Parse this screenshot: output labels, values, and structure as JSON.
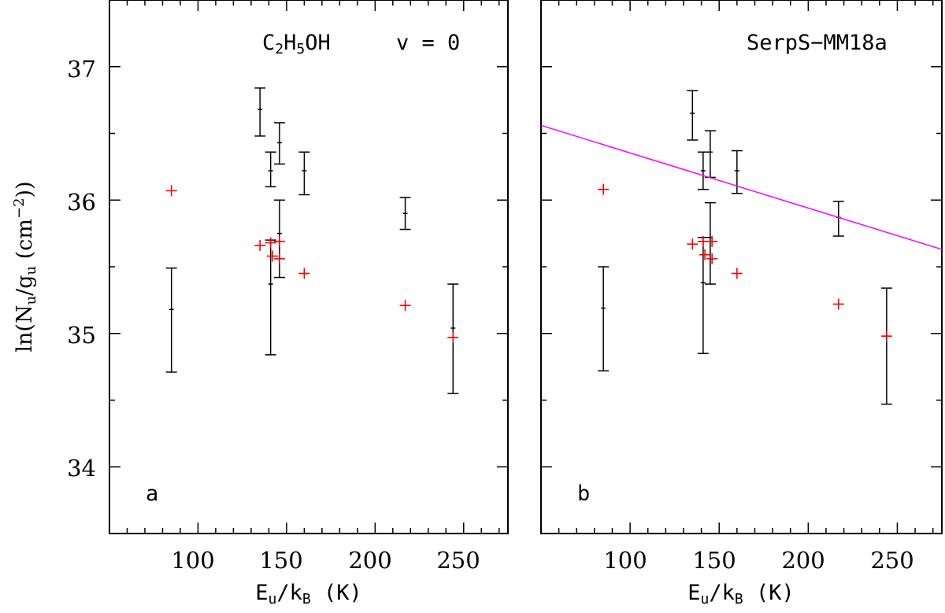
{
  "colors": {
    "frame": "#000000",
    "detected": "#000000",
    "model": "#ff0000",
    "fit": "#ff00ff"
  },
  "ylabel": {
    "pre": "ln(N",
    "sub1": "u",
    "mid": "/g",
    "sub2": "u",
    "unit": " (cm",
    "sup": "−2",
    "post": "))"
  },
  "xlabel": {
    "pre": "E",
    "sub1": "u",
    "mid": "/k",
    "sub2": "B",
    "post": " (K)"
  },
  "chart_data": [
    {
      "type": "scatter",
      "panel_label": "a",
      "title": {
        "molecule": "C2H5OH",
        "parts": [
          "C",
          "2",
          "H",
          "5",
          "OH"
        ],
        "state": "v = 0"
      },
      "xlim": [
        50,
        275
      ],
      "ylim": [
        33.5,
        37.5
      ],
      "xticks": [
        100,
        150,
        200,
        250
      ],
      "yticks": [
        34,
        35,
        36,
        37
      ],
      "series": [
        {
          "name": "observed",
          "points": [
            {
              "x": 85,
              "y": 35.18,
              "lo": 34.71,
              "hi": 35.49
            },
            {
              "x": 135,
              "y": 36.68,
              "lo": 36.48,
              "hi": 36.84
            },
            {
              "x": 141,
              "y": 36.22,
              "lo": 36.1,
              "hi": 36.36
            },
            {
              "x": 141,
              "y": 35.37,
              "lo": 34.84,
              "hi": 35.7
            },
            {
              "x": 146,
              "y": 36.43,
              "lo": 36.27,
              "hi": 36.58
            },
            {
              "x": 146,
              "y": 35.75,
              "lo": 35.42,
              "hi": 36.0
            },
            {
              "x": 160,
              "y": 36.22,
              "lo": 36.04,
              "hi": 36.36
            },
            {
              "x": 217,
              "y": 35.9,
              "lo": 35.78,
              "hi": 36.02
            },
            {
              "x": 244,
              "y": 35.04,
              "lo": 34.55,
              "hi": 35.37
            }
          ]
        },
        {
          "name": "model",
          "points": [
            {
              "x": 85,
              "y": 36.07
            },
            {
              "x": 135,
              "y": 35.66
            },
            {
              "x": 141,
              "y": 35.68
            },
            {
              "x": 142,
              "y": 35.58
            },
            {
              "x": 146,
              "y": 35.69
            },
            {
              "x": 146,
              "y": 35.56
            },
            {
              "x": 160,
              "y": 35.45
            },
            {
              "x": 217,
              "y": 35.21
            },
            {
              "x": 244,
              "y": 34.97
            }
          ]
        }
      ]
    },
    {
      "type": "scatter",
      "panel_label": "b",
      "title": {
        "source": "SerpS−MM18a"
      },
      "xlim": [
        50,
        275
      ],
      "ylim": [
        33.5,
        37.5
      ],
      "xticks": [
        100,
        150,
        200,
        250
      ],
      "yticks": [
        34,
        35,
        36,
        37
      ],
      "series": [
        {
          "name": "observed",
          "points": [
            {
              "x": 85,
              "y": 35.19,
              "lo": 34.72,
              "hi": 35.5
            },
            {
              "x": 135,
              "y": 36.65,
              "lo": 36.45,
              "hi": 36.82
            },
            {
              "x": 141,
              "y": 36.22,
              "lo": 36.08,
              "hi": 36.36
            },
            {
              "x": 141,
              "y": 35.38,
              "lo": 34.85,
              "hi": 35.72
            },
            {
              "x": 145,
              "y": 36.36,
              "lo": 36.17,
              "hi": 36.52
            },
            {
              "x": 145,
              "y": 35.72,
              "lo": 35.37,
              "hi": 35.98
            },
            {
              "x": 160,
              "y": 36.22,
              "lo": 36.05,
              "hi": 36.37
            },
            {
              "x": 217,
              "y": 35.87,
              "lo": 35.73,
              "hi": 35.99
            },
            {
              "x": 244,
              "y": 34.98,
              "lo": 34.47,
              "hi": 35.34
            }
          ]
        },
        {
          "name": "model",
          "points": [
            {
              "x": 85,
              "y": 36.08
            },
            {
              "x": 135,
              "y": 35.67
            },
            {
              "x": 141,
              "y": 35.69
            },
            {
              "x": 142,
              "y": 35.59
            },
            {
              "x": 146,
              "y": 35.69
            },
            {
              "x": 146,
              "y": 35.56
            },
            {
              "x": 160,
              "y": 35.45
            },
            {
              "x": 217,
              "y": 35.22
            },
            {
              "x": 244,
              "y": 34.98
            }
          ]
        },
        {
          "name": "fit",
          "line": {
            "x": [
              50,
              275
            ],
            "y": [
              36.56,
              35.63
            ]
          }
        }
      ]
    }
  ]
}
